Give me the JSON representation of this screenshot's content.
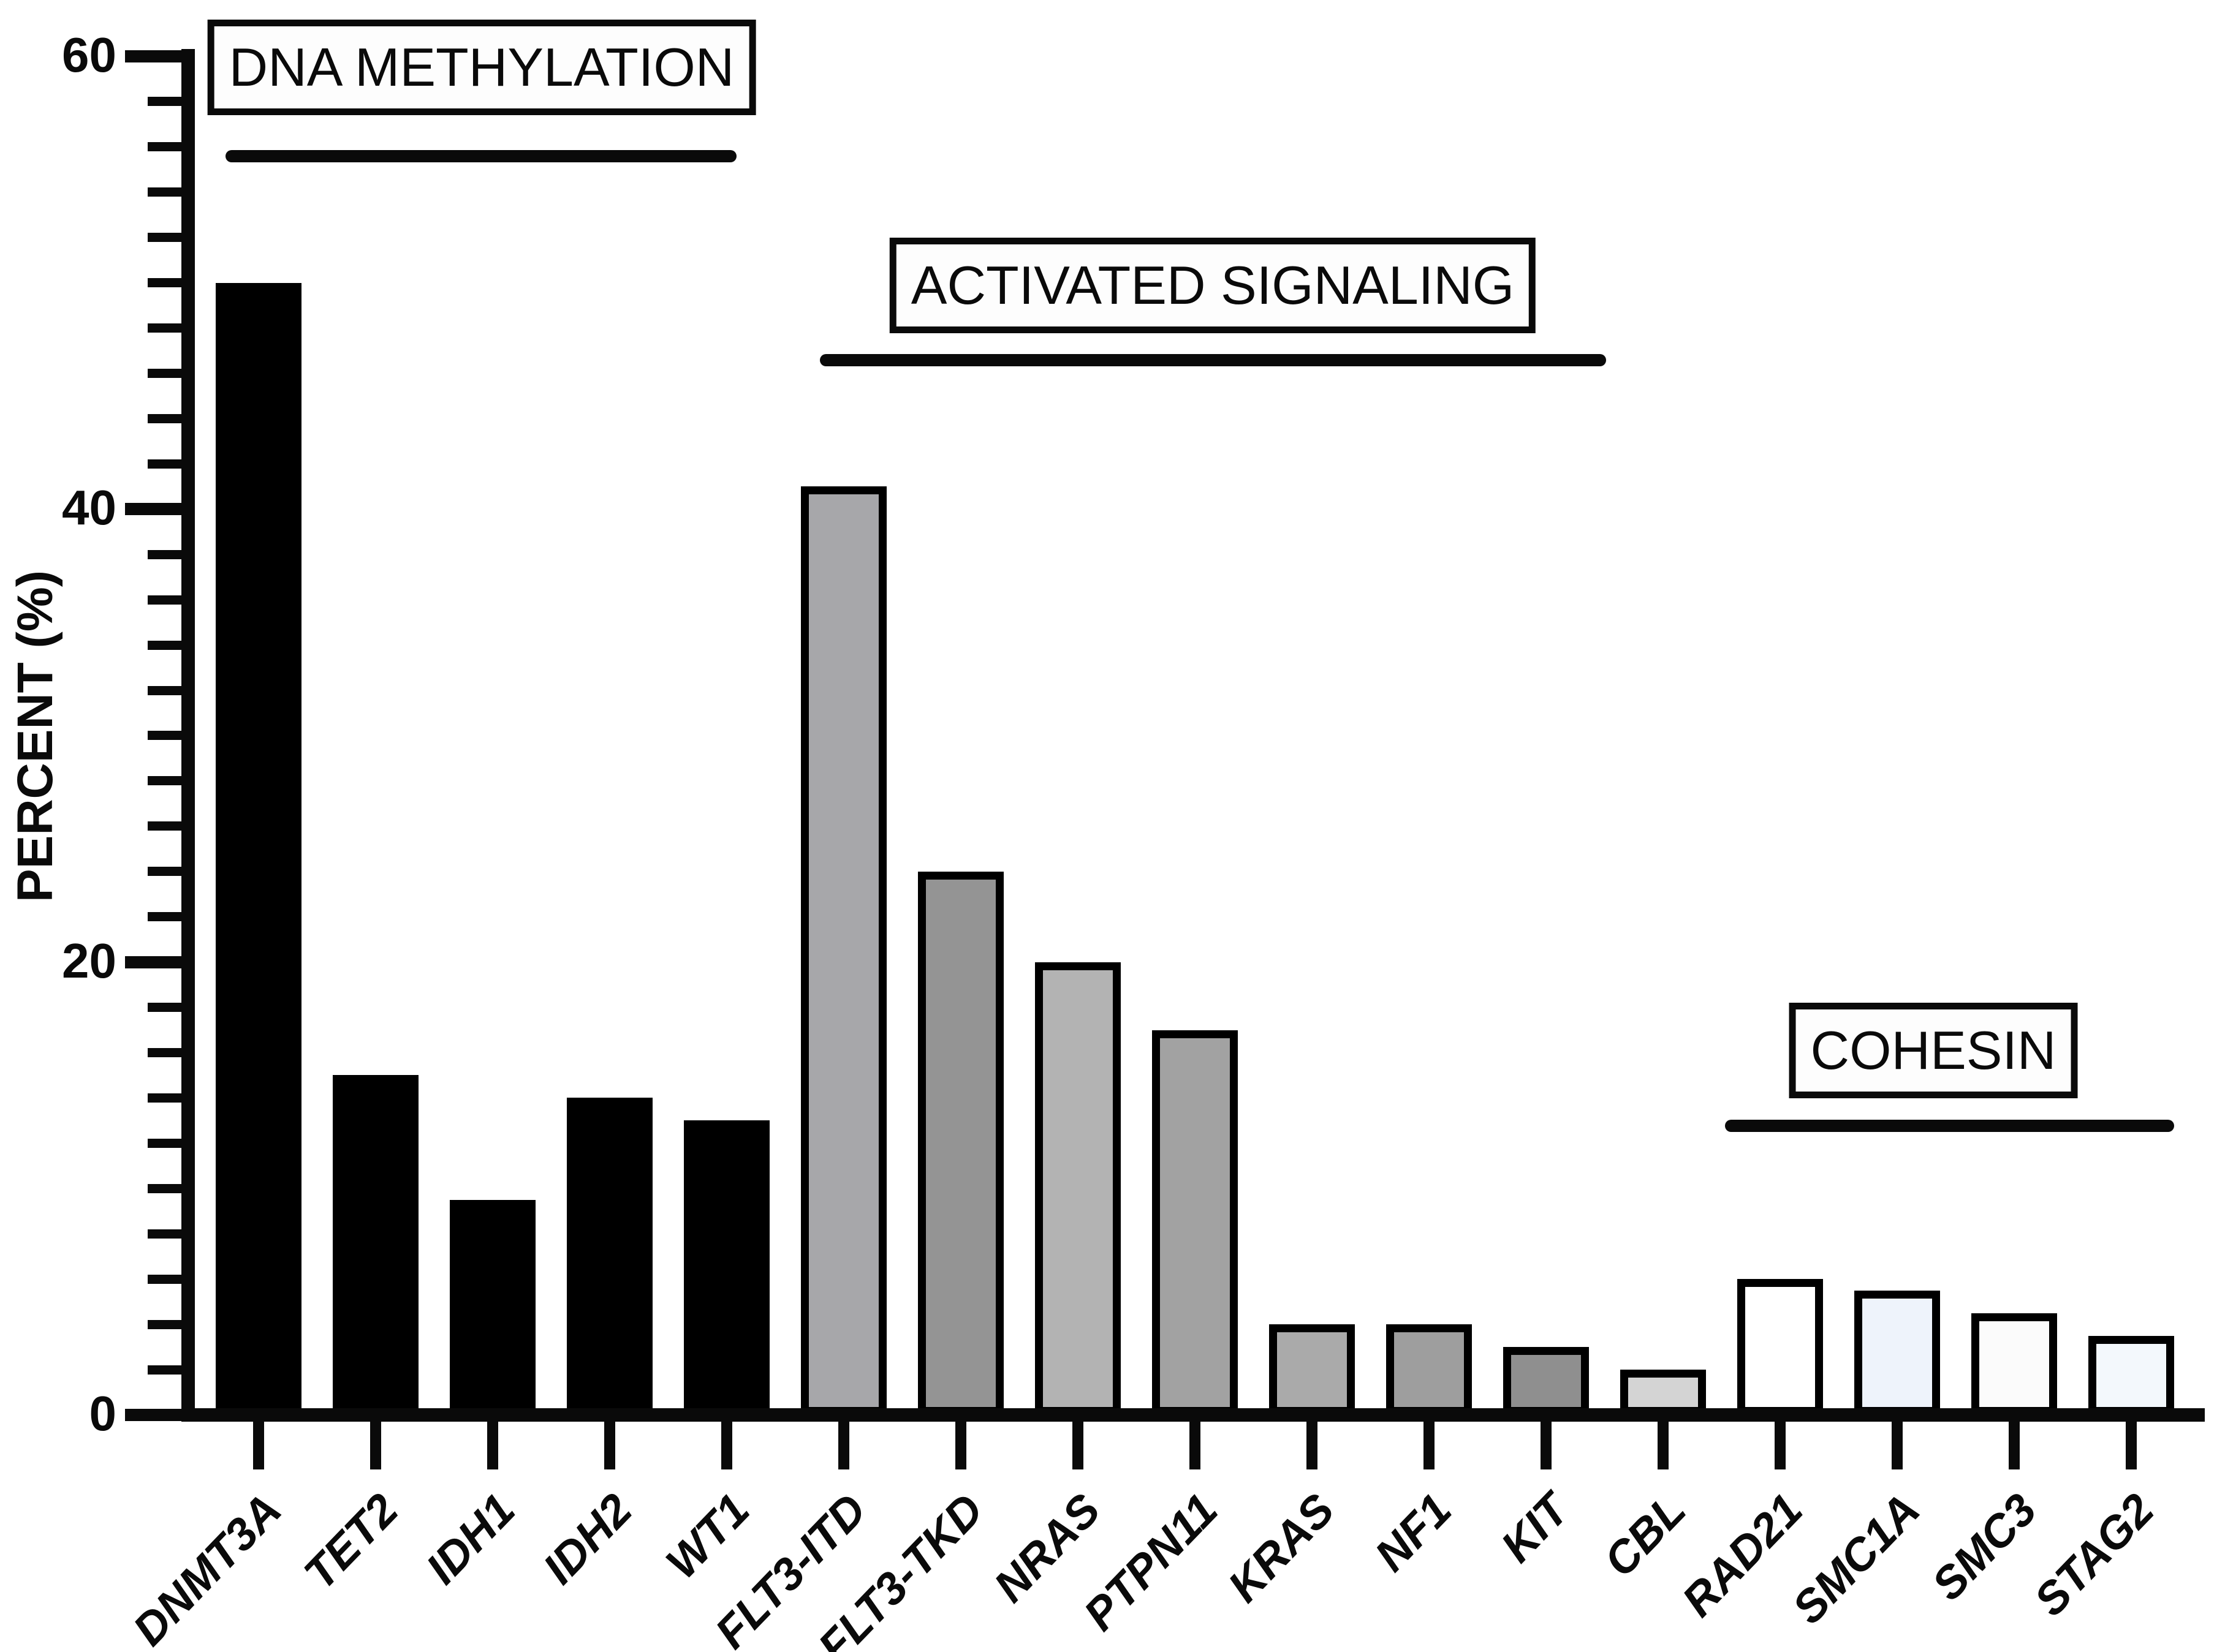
{
  "page": {
    "background": "#ffffff"
  },
  "chart_data": {
    "type": "bar",
    "title": "",
    "xlabel": "",
    "ylabel": "PERCENT (%)",
    "ylim": [
      0,
      60
    ],
    "y_major_ticks": [
      0,
      20,
      40,
      60
    ],
    "y_major_tick_labels": [
      "0",
      "20",
      "40",
      "60"
    ],
    "y_minor_step": 2,
    "grid": false,
    "legend": false,
    "x_label_angle_deg": -46,
    "categories": [
      "DNMT3A",
      "TET2",
      "IDH1",
      "IDH2",
      "WT1",
      "FLT3-ITD",
      "FLT3-TKD",
      "NRAS",
      "PTPN11",
      "KRAS",
      "NF1",
      "KIT",
      "CBL",
      "RAD21",
      "SMC1A",
      "SMC3",
      "STAG2"
    ],
    "values": [
      50,
      15,
      9.5,
      14,
      13,
      41,
      24,
      20,
      17,
      4,
      4,
      3,
      2,
      6,
      5.5,
      4.5,
      3.5
    ],
    "bar_fill_colors": [
      "#000000",
      "#000000",
      "#000000",
      "#000000",
      "#000000",
      "#a7a7aa",
      "#949494",
      "#b3b3b3",
      "#a2a2a2",
      "#aaaaaa",
      "#9e9e9e",
      "#8f8f8f",
      "#d4d4d4",
      "#ffffff",
      "#eef3fb",
      "#fbfbfb",
      "#f3f8fc"
    ],
    "bar_outline_color": "#000000",
    "groups": [
      {
        "label": "DNA METHYLATION",
        "genes": [
          "DNMT3A",
          "TET2",
          "IDH1",
          "IDH2",
          "WT1"
        ]
      },
      {
        "label": "ACTIVATED SIGNALING",
        "genes": [
          "FLT3-ITD",
          "FLT3-TKD",
          "NRAS",
          "PTPN11",
          "KRAS",
          "NF1",
          "KIT",
          "CBL"
        ]
      },
      {
        "label": "COHESIN",
        "genes": [
          "RAD21",
          "SMC1A",
          "SMC3",
          "STAG2"
        ]
      }
    ]
  }
}
